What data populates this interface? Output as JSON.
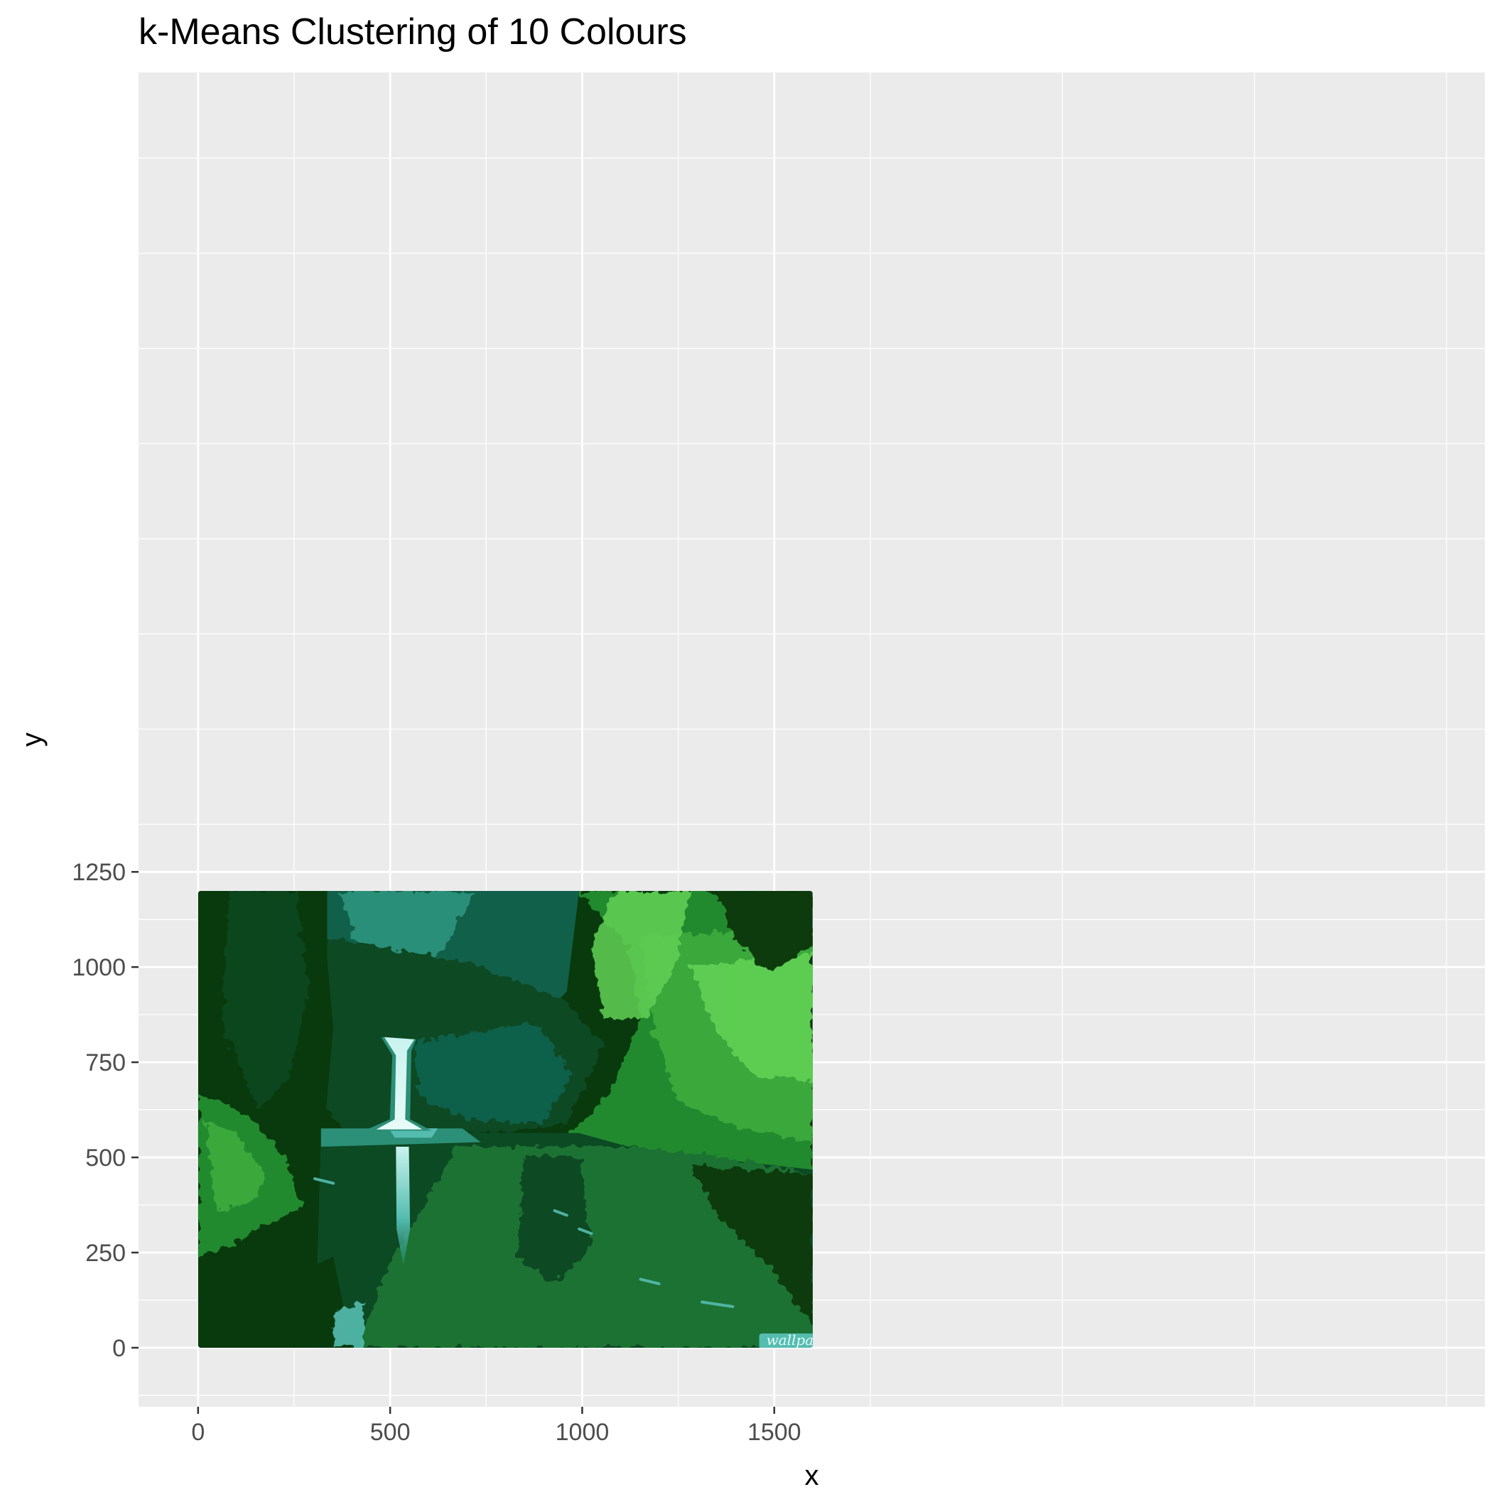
{
  "chart_data": {
    "type": "heatmap",
    "title": "k-Means Clustering of 10 Colours",
    "xlabel": "x",
    "ylabel": "y",
    "xlim": [
      -155,
      3350
    ],
    "ylim": [
      -155,
      3350
    ],
    "x_ticks": [
      0,
      500,
      1000,
      1500
    ],
    "y_ticks": [
      0,
      250,
      500,
      750,
      1000,
      1250
    ],
    "image_extent": {
      "x": [
        0,
        1600
      ],
      "y": [
        0,
        1200
      ]
    },
    "grid": true,
    "legend": "none",
    "watermark_text": "wallpapere.eu",
    "cluster_colors": [
      "#083a0d",
      "#0c4a24",
      "#1a7230",
      "#228a2f",
      "#3aa83a",
      "#62d155",
      "#116049",
      "#2c8f78",
      "#55bdb0",
      "#c9f3ef"
    ]
  }
}
